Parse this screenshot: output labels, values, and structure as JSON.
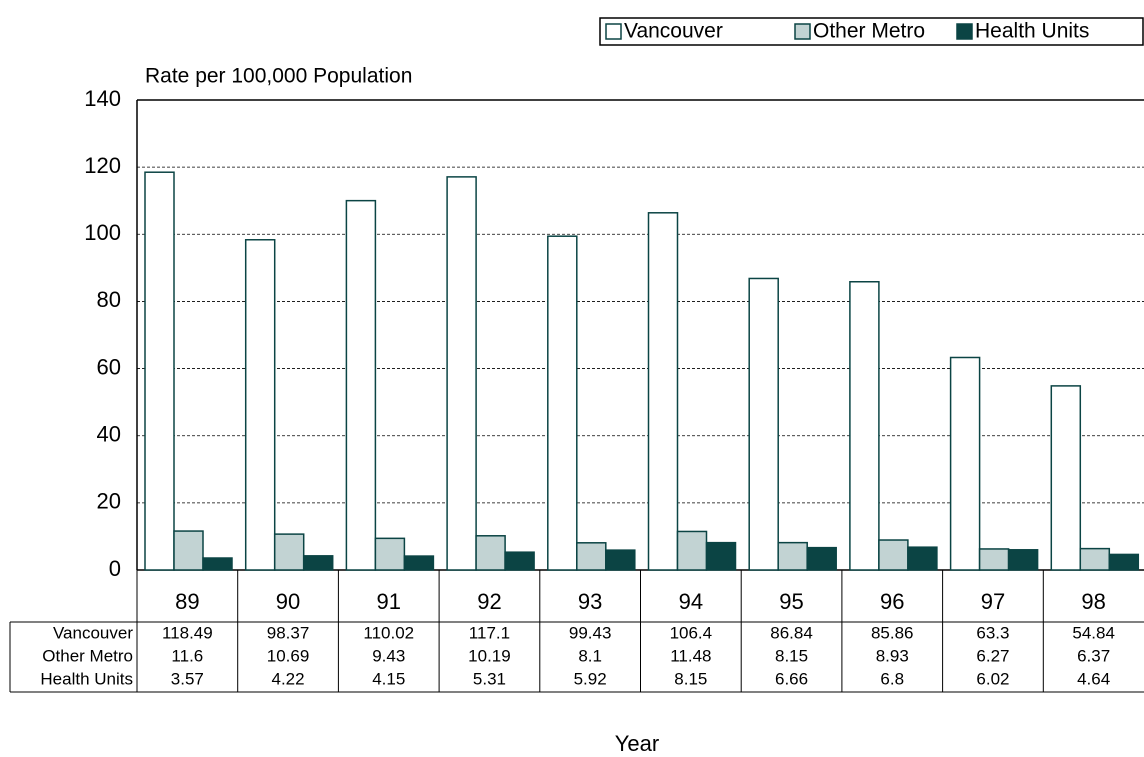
{
  "chart_data": {
    "type": "bar",
    "y_axis_title": "Rate per 100,000 Population",
    "x_axis_title": "Year",
    "categories": [
      "89",
      "90",
      "91",
      "92",
      "93",
      "94",
      "95",
      "96",
      "97",
      "98"
    ],
    "series": [
      {
        "name": "Vancouver",
        "color": "#ffffff",
        "values": [
          118.49,
          98.37,
          110.02,
          117.1,
          99.43,
          106.4,
          86.84,
          85.86,
          63.3,
          54.84
        ]
      },
      {
        "name": "Other Metro",
        "color": "#c2d3d3",
        "values": [
          11.6,
          10.69,
          9.43,
          10.19,
          8.1,
          11.48,
          8.15,
          8.93,
          6.27,
          6.37
        ]
      },
      {
        "name": "Health Units",
        "color": "#0b4444",
        "values": [
          3.57,
          4.22,
          4.15,
          5.31,
          5.92,
          8.15,
          6.66,
          6.8,
          6.02,
          4.64
        ]
      }
    ],
    "ylim": [
      0,
      140
    ],
    "yticks": [
      0,
      20,
      40,
      60,
      80,
      100,
      120,
      140
    ],
    "grid": true,
    "legend": "top-right",
    "data_table": true
  }
}
